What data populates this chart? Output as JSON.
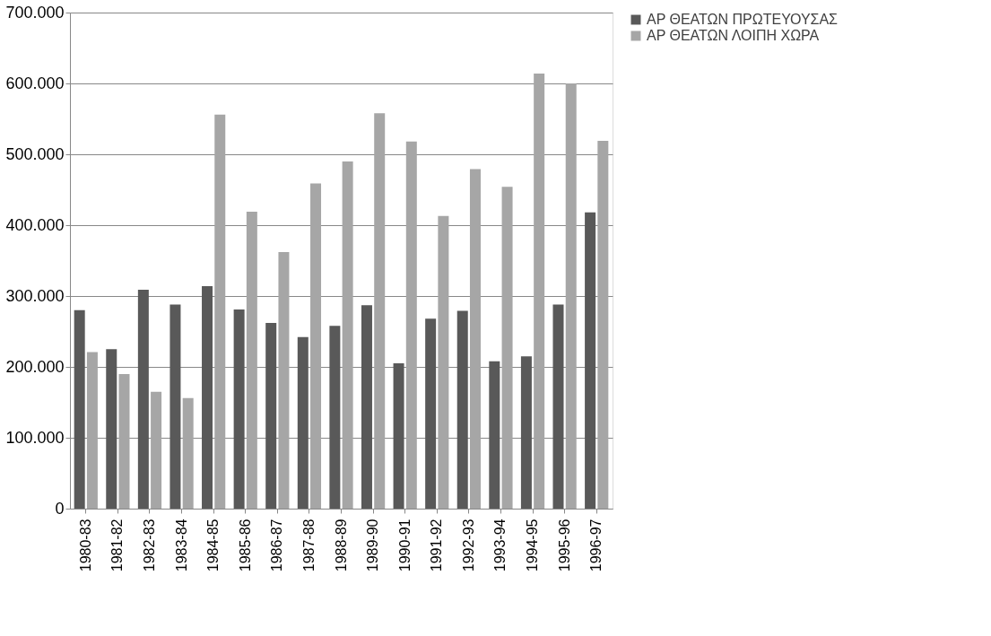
{
  "chart_data": {
    "type": "bar",
    "categories": [
      "1980-83",
      "1981-82",
      "1982-83",
      "1983-84",
      "1984-85",
      "1985-86",
      "1986-87",
      "1987-88",
      "1988-89",
      "1989-90",
      "1990-91",
      "1991-92",
      "1992-93",
      "1993-94",
      "1994-95",
      "1995-96",
      "1996-97"
    ],
    "series": [
      {
        "name": "ΑΡ ΘΕΑΤΩΝ ΠΡΩΤΕΥΟΥΣΑΣ",
        "color": "#595959",
        "values": [
          280000,
          225000,
          309000,
          288000,
          314000,
          281000,
          262000,
          242000,
          258000,
          287000,
          205000,
          268000,
          279000,
          208000,
          215000,
          288000,
          418000
        ]
      },
      {
        "name": "ΑΡ ΘΕΑΤΩΝ ΛΟΙΠΗ ΧΩΡΑ",
        "color": "#a6a6a6",
        "values": [
          221000,
          190000,
          165000,
          156000,
          556000,
          419000,
          362000,
          459000,
          490000,
          558000,
          518000,
          413000,
          479000,
          454000,
          614000,
          600000,
          519000
        ]
      }
    ],
    "ylim": [
      0,
      700000
    ],
    "yticks": [
      0,
      {
        "value": 100000,
        "label": "100.000"
      },
      {
        "value": 200000,
        "label": "200.000"
      },
      {
        "value": 300000,
        "label": "300.000"
      },
      {
        "value": 400000,
        "label": "400.000"
      },
      {
        "value": 500000,
        "label": "500.000"
      },
      {
        "value": 600000,
        "label": "600.000"
      },
      {
        "value": 700000,
        "label": "700.000"
      }
    ],
    "grid": "y",
    "legend": "right"
  }
}
